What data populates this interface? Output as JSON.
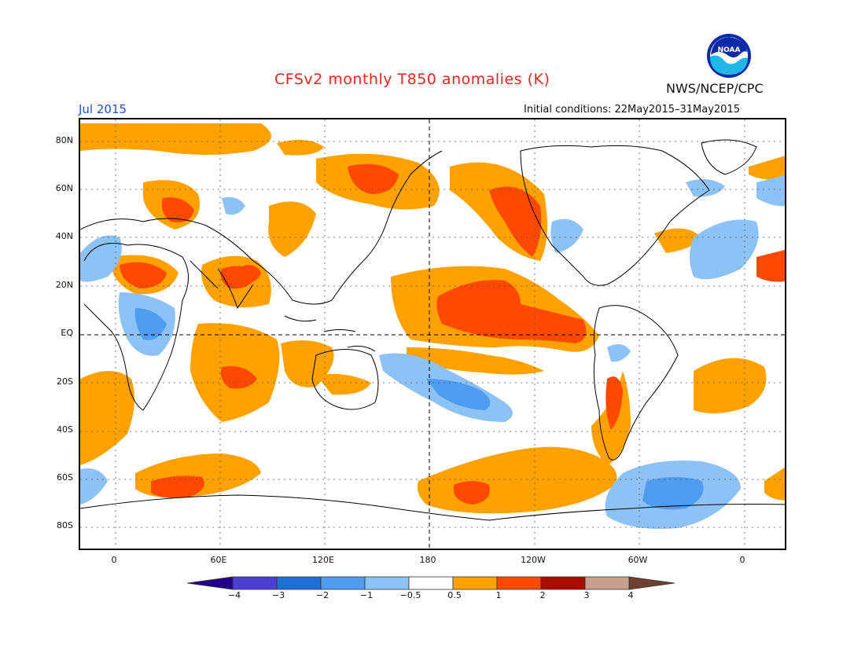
{
  "header": {
    "title": "CFSv2 monthly T850 anomalies (K)",
    "month": "Jul 2015",
    "initial_conditions": "Initial conditions: 22May2015–31May2015",
    "agency": "NWS/NCEP/CPC",
    "logo_text": "NOAA"
  },
  "map": {
    "lat_labels": [
      "80N",
      "60N",
      "40N",
      "20N",
      "EQ",
      "20S",
      "40S",
      "60S",
      "80S"
    ],
    "lon_labels": [
      "0",
      "60E",
      "120E",
      "180",
      "120W",
      "60W",
      "0"
    ],
    "colors": {
      "neg4": "#24008b",
      "neg3": "#4a3fd0",
      "neg2": "#1f6fd8",
      "neg1": "#4f9cf0",
      "neg05": "#8cc2f5",
      "neutral": "#ffffff",
      "pos05": "#ffa200",
      "pos1": "#ff4800",
      "pos2": "#ab0c00",
      "pos3": "#c8a090",
      "pos4": "#6e4030"
    }
  },
  "colorbar": {
    "labels": [
      "−4",
      "−3",
      "−2",
      "−1",
      "−0.5",
      "0.5",
      "1",
      "2",
      "3",
      "4"
    ]
  }
}
